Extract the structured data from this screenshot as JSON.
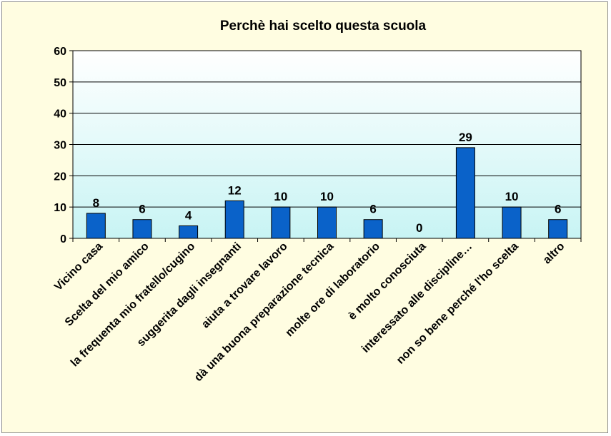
{
  "chart_data": {
    "type": "bar",
    "title": "Perchè hai scelto questa scuola",
    "xlabel": "",
    "ylabel": "",
    "ylim": [
      0,
      60
    ],
    "yticks": [
      "0",
      "10",
      "20",
      "30",
      "40",
      "50",
      "60"
    ],
    "grid": true,
    "categories": [
      "Vicino casa",
      "Scelta del mio amico",
      "la frequenta mio fratello/cugino",
      "suggerita dagli insegnanti",
      "aiuta a trovare lavoro",
      "dà una buona preparazione tecnica",
      "molte ore di laboratorio",
      "è molto conosciuta",
      "interessato alle discipline…",
      "non so bene perché l'ho scelta",
      "altro"
    ],
    "values": [
      8,
      6,
      4,
      12,
      10,
      10,
      6,
      0,
      29,
      10,
      6
    ],
    "data_labels": [
      "8",
      "6",
      "4",
      "12",
      "10",
      "10",
      "6",
      "0",
      "29",
      "10",
      "6"
    ],
    "colors": {
      "bar": "#0a62c9",
      "bar_outline": "#000000",
      "plot_top": "#ffffff",
      "plot_bottom": "#c8f4f4",
      "frame": "#fffde1"
    }
  }
}
